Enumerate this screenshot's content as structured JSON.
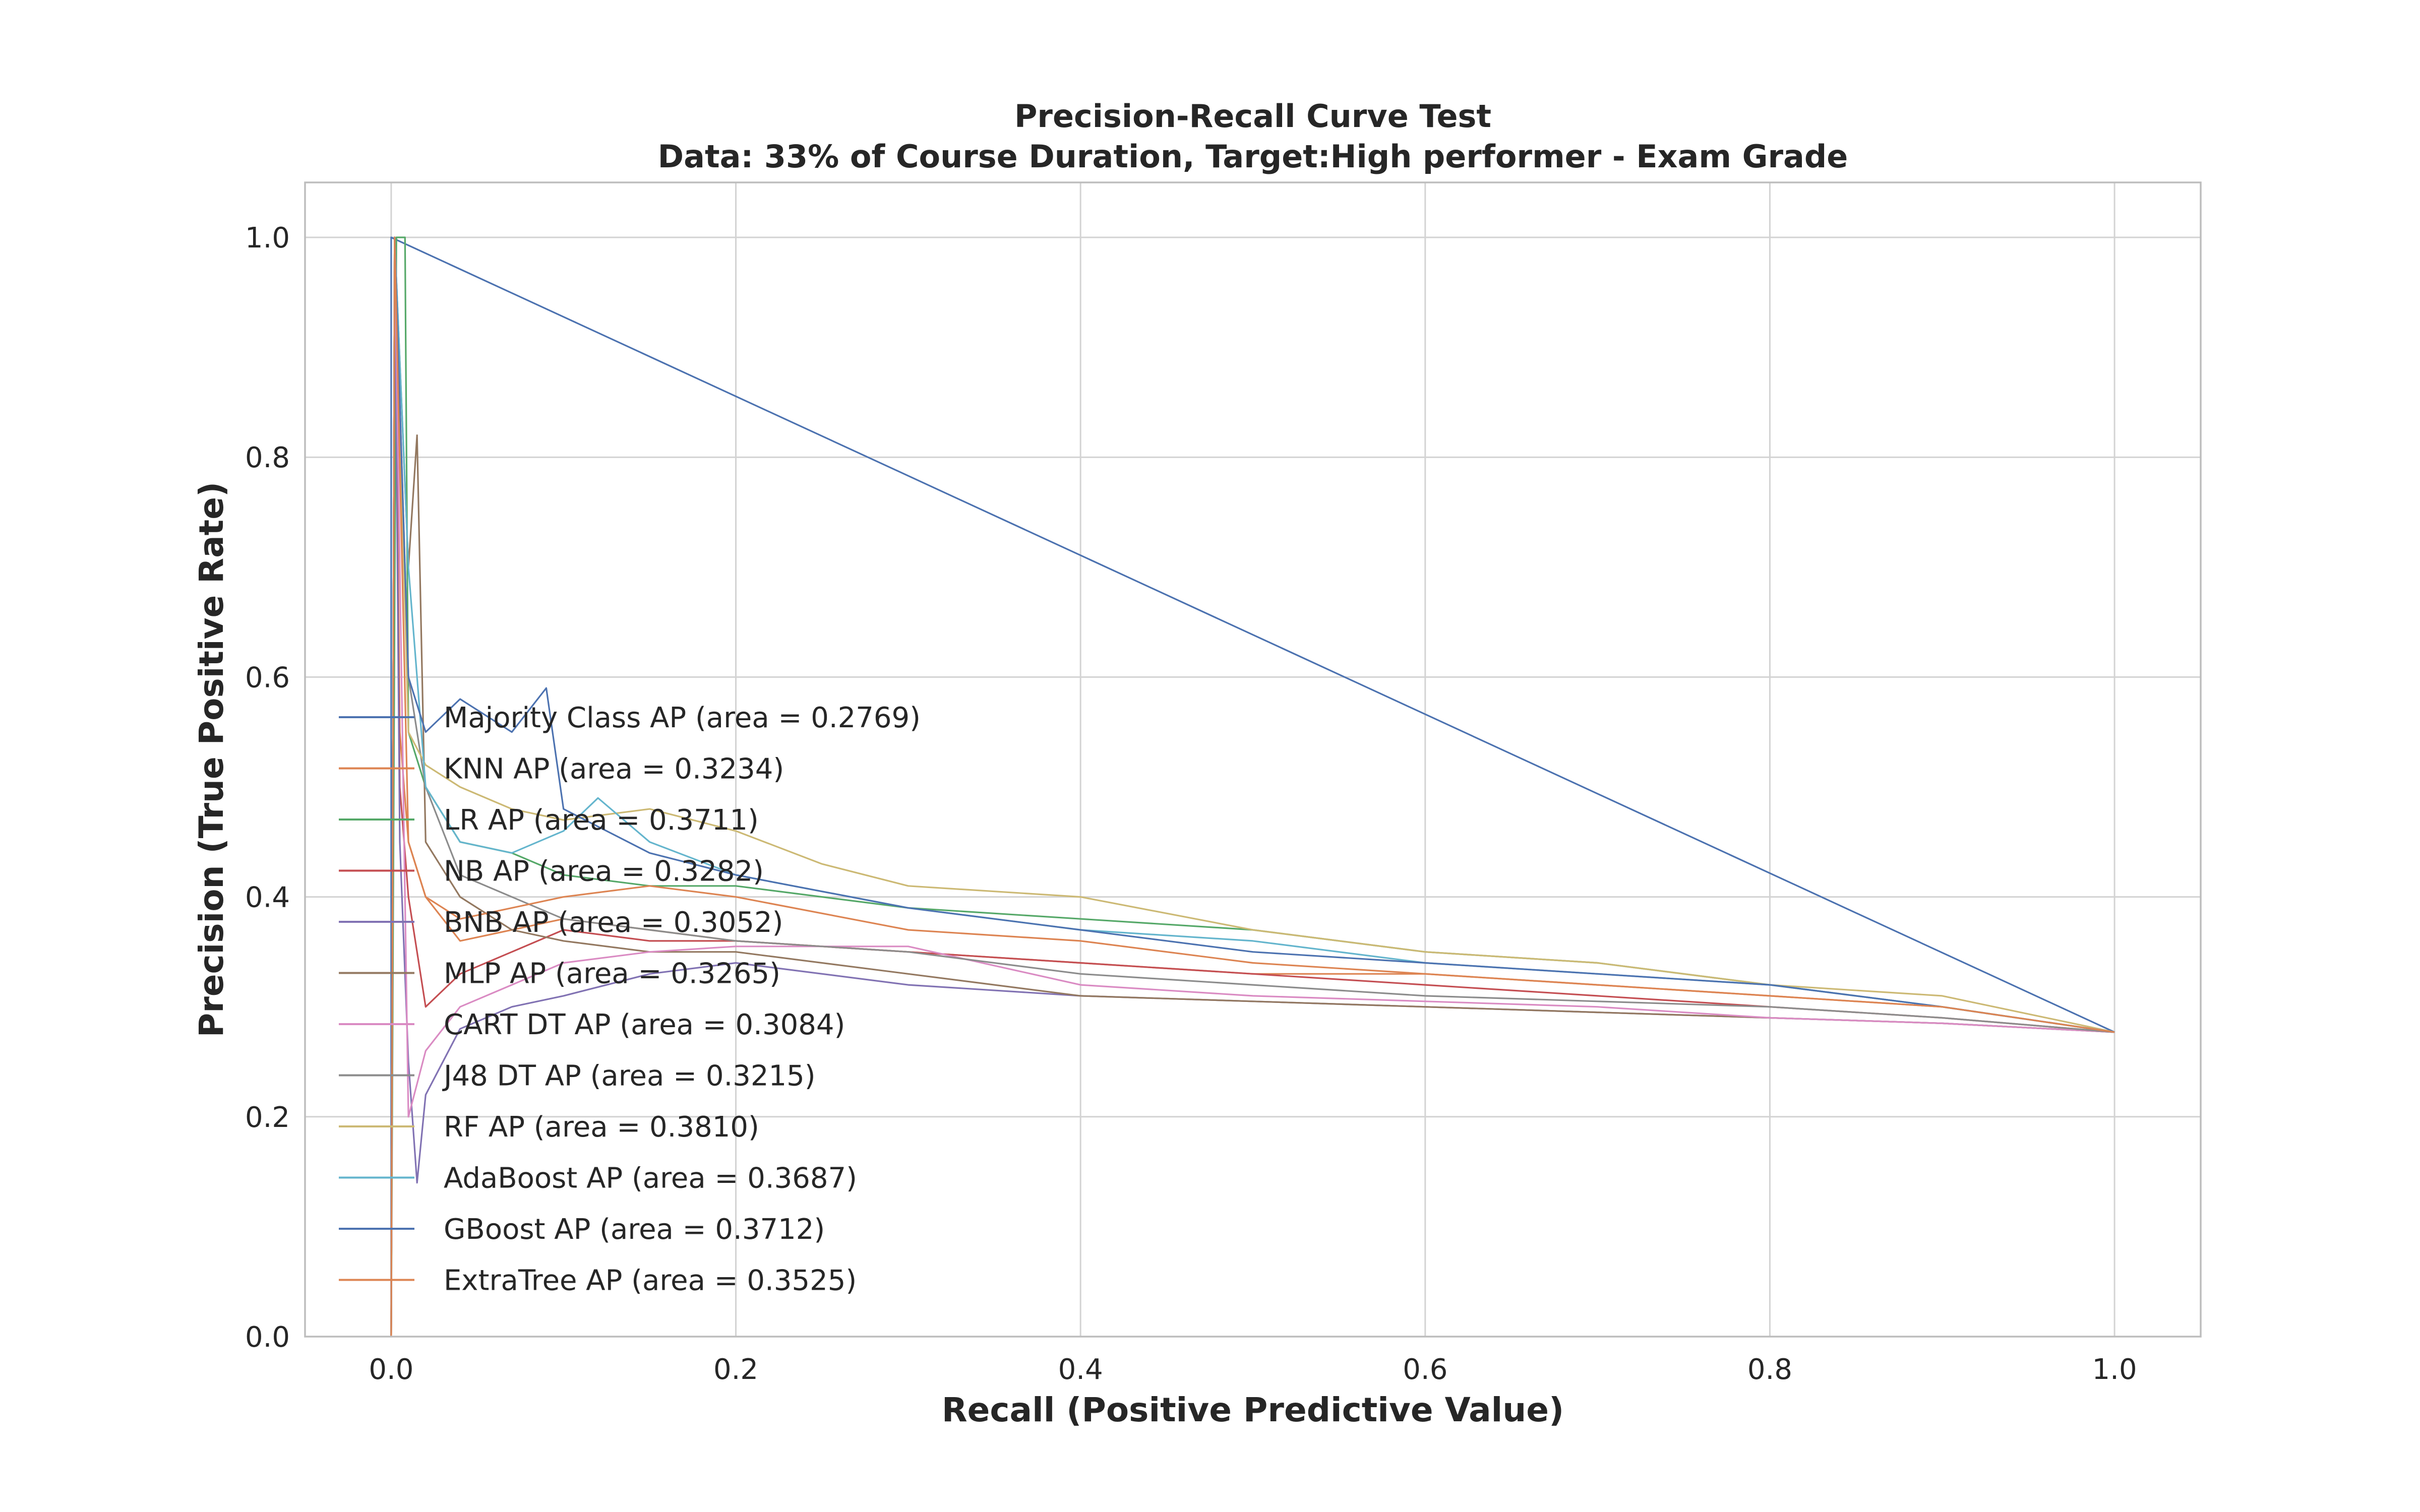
{
  "chart_data": {
    "type": "line",
    "title": "Precision-Recall Curve Test",
    "subtitle": "Data: 33% of Course Duration, Target:High performer - Exam Grade",
    "xlabel": "Recall (Positive Predictive Value)",
    "ylabel": "Precision (True Positive Rate)",
    "xlim": [
      -0.05,
      1.05
    ],
    "ylim": [
      0,
      1.05
    ],
    "xticks": [
      "0.0",
      "0.2",
      "0.4",
      "0.6",
      "0.8",
      "1.0"
    ],
    "yticks": [
      "0.0",
      "0.2",
      "0.4",
      "0.6",
      "0.8",
      "1.0"
    ],
    "grid": true,
    "legend_position": "center-left",
    "series": [
      {
        "name": "Majority Class AP (area = 0.2769)",
        "color": "#4c72b0",
        "x": [
          0,
          0,
          1.0
        ],
        "y": [
          0,
          1.0,
          0.277
        ]
      },
      {
        "name": "KNN AP (area = 0.3234)",
        "color": "#dd8452",
        "x": [
          0,
          0.002,
          0.005,
          0.01,
          0.02,
          0.04,
          0.07,
          0.1,
          0.15,
          0.2,
          0.3,
          0.4,
          0.5,
          0.6,
          0.7,
          0.8,
          0.9,
          1.0
        ],
        "y": [
          0,
          1.0,
          0.55,
          0.45,
          0.4,
          0.36,
          0.37,
          0.38,
          0.37,
          0.36,
          0.35,
          0.34,
          0.33,
          0.33,
          0.32,
          0.31,
          0.3,
          0.277
        ]
      },
      {
        "name": "LR AP (area = 0.3711)",
        "color": "#55a868",
        "x": [
          0,
          0.003,
          0.008,
          0.01,
          0.02,
          0.04,
          0.07,
          0.1,
          0.15,
          0.2,
          0.3,
          0.4,
          0.5,
          0.6,
          0.7,
          0.8,
          0.9,
          1.0
        ],
        "y": [
          0,
          1.0,
          1.0,
          0.55,
          0.5,
          0.45,
          0.44,
          0.42,
          0.41,
          0.41,
          0.39,
          0.38,
          0.37,
          0.35,
          0.34,
          0.32,
          0.3,
          0.277
        ]
      },
      {
        "name": "NB AP (area = 0.3282)",
        "color": "#c44e52",
        "x": [
          0,
          0.002,
          0.005,
          0.01,
          0.02,
          0.04,
          0.07,
          0.1,
          0.15,
          0.2,
          0.3,
          0.4,
          0.5,
          0.6,
          0.7,
          0.8,
          0.9,
          1.0
        ],
        "y": [
          0,
          1.0,
          0.5,
          0.4,
          0.3,
          0.33,
          0.35,
          0.37,
          0.36,
          0.36,
          0.35,
          0.34,
          0.33,
          0.32,
          0.31,
          0.3,
          0.29,
          0.277
        ]
      },
      {
        "name": "BNB AP (area = 0.3052)",
        "color": "#8172b3",
        "x": [
          0,
          0.002,
          0.005,
          0.01,
          0.015,
          0.02,
          0.04,
          0.07,
          0.1,
          0.15,
          0.2,
          0.3,
          0.4,
          0.5,
          0.6,
          0.7,
          0.8,
          0.9,
          1.0
        ],
        "y": [
          0,
          1.0,
          0.45,
          0.25,
          0.14,
          0.22,
          0.28,
          0.3,
          0.31,
          0.33,
          0.34,
          0.32,
          0.31,
          0.305,
          0.3,
          0.295,
          0.29,
          0.285,
          0.277
        ]
      },
      {
        "name": "MLP AP (area = 0.3265)",
        "color": "#937860",
        "x": [
          0,
          0.002,
          0.01,
          0.015,
          0.02,
          0.04,
          0.07,
          0.1,
          0.15,
          0.2,
          0.3,
          0.4,
          0.5,
          0.6,
          0.7,
          0.8,
          0.9,
          1.0
        ],
        "y": [
          0,
          1.0,
          0.7,
          0.82,
          0.45,
          0.4,
          0.37,
          0.36,
          0.35,
          0.35,
          0.33,
          0.31,
          0.305,
          0.3,
          0.295,
          0.29,
          0.285,
          0.277
        ]
      },
      {
        "name": "CART DT AP (area = 0.3084)",
        "color": "#da8bc3",
        "x": [
          0,
          0.002,
          0.01,
          0.02,
          0.04,
          0.07,
          0.1,
          0.15,
          0.2,
          0.3,
          0.4,
          0.5,
          0.6,
          0.7,
          0.8,
          0.9,
          1.0
        ],
        "y": [
          0,
          1.0,
          0.2,
          0.26,
          0.3,
          0.32,
          0.34,
          0.35,
          0.355,
          0.355,
          0.32,
          0.31,
          0.305,
          0.3,
          0.29,
          0.285,
          0.277
        ]
      },
      {
        "name": "J48 DT AP (area = 0.3215)",
        "color": "#8c8c8c",
        "x": [
          0,
          0.002,
          0.01,
          0.02,
          0.04,
          0.07,
          0.1,
          0.15,
          0.2,
          0.3,
          0.4,
          0.5,
          0.6,
          0.7,
          0.8,
          0.9,
          1.0
        ],
        "y": [
          0,
          1.0,
          0.6,
          0.5,
          0.42,
          0.4,
          0.38,
          0.37,
          0.36,
          0.35,
          0.33,
          0.32,
          0.31,
          0.305,
          0.3,
          0.29,
          0.277
        ]
      },
      {
        "name": "RF AP (area = 0.3810)",
        "color": "#ccb974",
        "x": [
          0,
          0.002,
          0.01,
          0.02,
          0.04,
          0.07,
          0.1,
          0.15,
          0.2,
          0.25,
          0.3,
          0.4,
          0.5,
          0.6,
          0.7,
          0.8,
          0.9,
          1.0
        ],
        "y": [
          0,
          1.0,
          0.55,
          0.52,
          0.5,
          0.48,
          0.47,
          0.48,
          0.46,
          0.43,
          0.41,
          0.4,
          0.37,
          0.35,
          0.34,
          0.32,
          0.31,
          0.277
        ]
      },
      {
        "name": "AdaBoost AP (area = 0.3687)",
        "color": "#64b5cd",
        "x": [
          0,
          0.002,
          0.01,
          0.02,
          0.04,
          0.07,
          0.1,
          0.12,
          0.15,
          0.2,
          0.3,
          0.4,
          0.5,
          0.6,
          0.7,
          0.8,
          0.9,
          1.0
        ],
        "y": [
          0,
          1.0,
          0.7,
          0.5,
          0.45,
          0.44,
          0.46,
          0.49,
          0.45,
          0.42,
          0.39,
          0.37,
          0.36,
          0.34,
          0.33,
          0.32,
          0.3,
          0.277
        ]
      },
      {
        "name": "GBoost AP (area = 0.3712)",
        "color": "#4c72b0",
        "x": [
          0,
          0.002,
          0.01,
          0.02,
          0.04,
          0.07,
          0.09,
          0.1,
          0.15,
          0.2,
          0.3,
          0.4,
          0.5,
          0.6,
          0.7,
          0.8,
          0.9,
          1.0
        ],
        "y": [
          0,
          1.0,
          0.6,
          0.55,
          0.58,
          0.55,
          0.59,
          0.48,
          0.44,
          0.42,
          0.39,
          0.37,
          0.35,
          0.34,
          0.33,
          0.32,
          0.3,
          0.277
        ]
      },
      {
        "name": "ExtraTree AP (area = 0.3525)",
        "color": "#dd8452",
        "x": [
          0,
          0.002,
          0.01,
          0.02,
          0.04,
          0.07,
          0.1,
          0.15,
          0.2,
          0.3,
          0.4,
          0.5,
          0.6,
          0.7,
          0.8,
          0.9,
          1.0
        ],
        "y": [
          0,
          1.0,
          0.45,
          0.4,
          0.38,
          0.39,
          0.4,
          0.41,
          0.4,
          0.37,
          0.36,
          0.34,
          0.33,
          0.32,
          0.31,
          0.3,
          0.277
        ]
      }
    ]
  }
}
